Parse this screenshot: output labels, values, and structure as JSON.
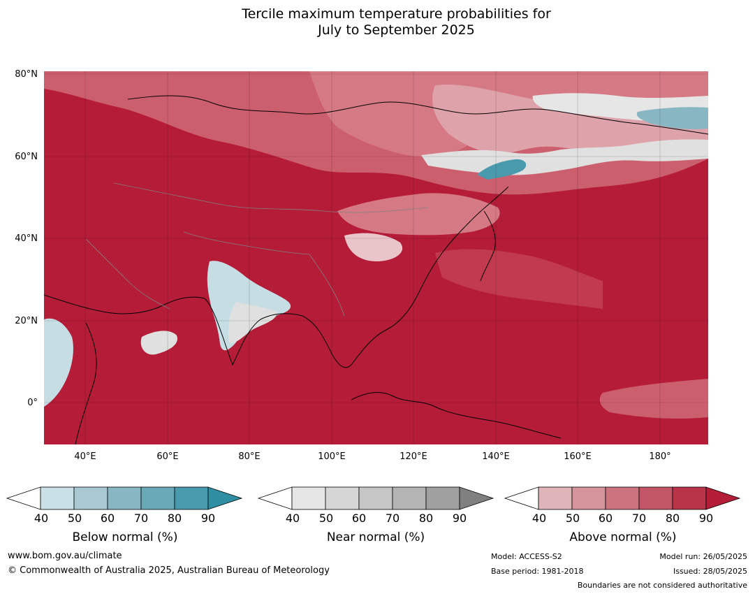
{
  "title": {
    "line1": "Tercile maximum temperature probabilities for",
    "line2": "July to September 2025"
  },
  "map": {
    "lat_labels": [
      "80°N",
      "60°N",
      "40°N",
      "20°N",
      "0°"
    ],
    "lon_labels": [
      "40°E",
      "60°E",
      "80°E",
      "100°E",
      "120°E",
      "140°E",
      "160°E",
      "180°"
    ],
    "colors": {
      "above_90": "#b41c38",
      "above_80": "#c13a4f",
      "above_70": "#cc5f6e",
      "above_60": "#d57a85",
      "above_50": "#dea2aa",
      "above_40": "#e9c4c8",
      "near": "#e0e0e0",
      "below_50": "#c5dde3",
      "below_70": "#88b6c3",
      "below_80": "#4a9aad"
    }
  },
  "colorbars": {
    "below": {
      "label": "Below normal (%)",
      "ticks": [
        "40",
        "50",
        "60",
        "70",
        "80",
        "90"
      ],
      "colors": [
        "#ffffff",
        "#c8e0e6",
        "#a8c9d1",
        "#88b6c3",
        "#69a9b8",
        "#4a9aad",
        "#2f8ea2"
      ]
    },
    "near": {
      "label": "Near normal (%)",
      "ticks": [
        "40",
        "50",
        "60",
        "70",
        "80",
        "90"
      ],
      "colors": [
        "#ffffff",
        "#e6e6e6",
        "#d6d6d6",
        "#c6c6c6",
        "#b4b4b4",
        "#a0a0a0",
        "#808080"
      ]
    },
    "above": {
      "label": "Above normal (%)",
      "ticks": [
        "40",
        "50",
        "60",
        "70",
        "80",
        "90"
      ],
      "colors": [
        "#ffffff",
        "#dfb5ba",
        "#d5949c",
        "#cb737f",
        "#c25566",
        "#b93449",
        "#b41c38"
      ]
    }
  },
  "footer": {
    "website": "www.bom.gov.au/climate",
    "copyright": "© Commonwealth of Australia 2025, Australian Bureau of Meteorology",
    "model": "Model: ACCESS-S2",
    "base_period": "Base period: 1981-2018",
    "model_run": "Model run: 26/05/2025",
    "issued": "Issued: 28/05/2025",
    "disclaimer": "Boundaries are not considered authoritative"
  }
}
